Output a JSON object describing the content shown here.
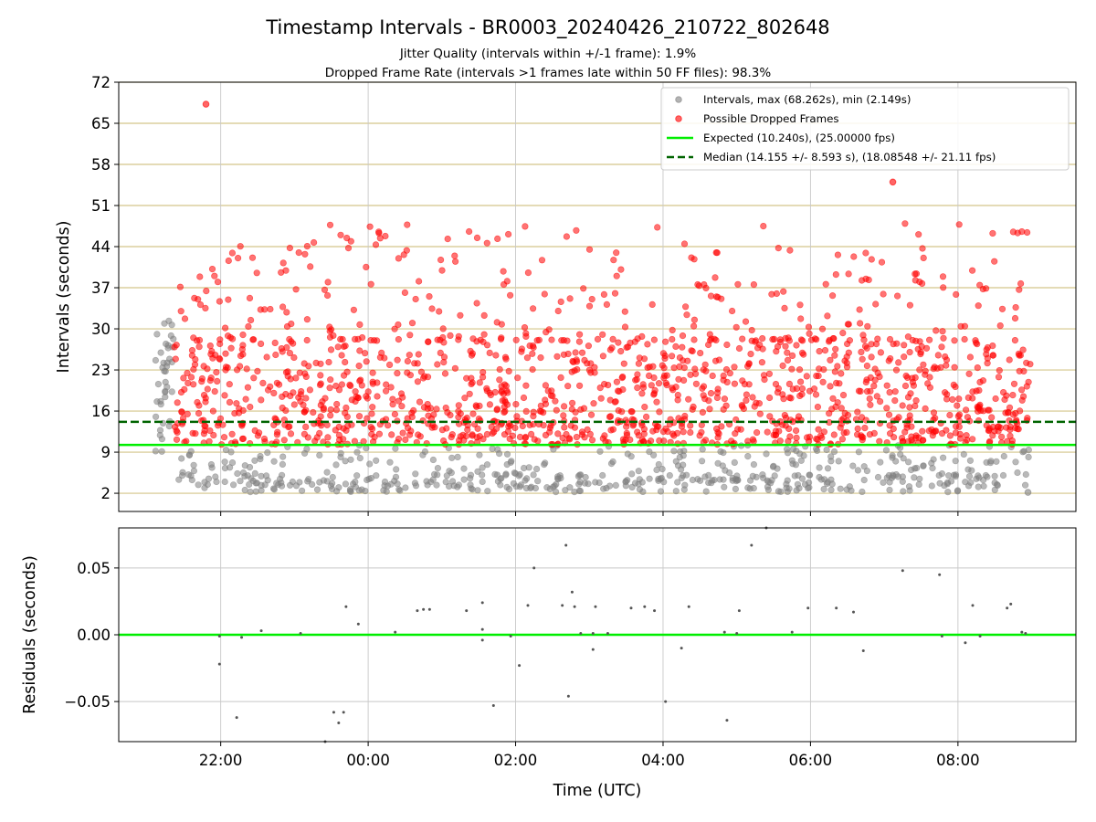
{
  "chart_data": [
    {
      "type": "scatter",
      "title": "Timestamp Intervals - BR0003_20240426_210722_802648",
      "subtitles": [
        "Jitter Quality (intervals within +/-1 frame): 1.9%",
        "Dropped Frame Rate (intervals >1 frames late within 50 FF files): 98.3%"
      ],
      "xlabel": "",
      "ylabel": "Intervals (seconds)",
      "xlim": [
        "2024-04-26 20:37",
        "2024-04-27 09:36"
      ],
      "ylim": [
        -1.1,
        72
      ],
      "yticks": [
        2,
        9,
        16,
        23,
        30,
        37,
        44,
        51,
        58,
        65,
        72
      ],
      "ytick_labels": [
        "2",
        "9",
        "16",
        "23",
        "30",
        "37",
        "44",
        "51",
        "58",
        "65",
        "72"
      ],
      "grid": "horizontal",
      "grid_color": "#d4c58a",
      "legend_position": "top-right",
      "reference_lines": [
        {
          "name": "Expected (10.240s), (25.00000 fps)",
          "y": 10.24,
          "style": "solid",
          "color": "#00ee00"
        },
        {
          "name": "Median (14.155 +/- 8.593 s), (18.08548 +/- 21.11 fps)",
          "y": 14.155,
          "style": "dashed",
          "color": "#006400"
        }
      ],
      "series": [
        {
          "name": "Intervals, max (68.262s), min (2.149s)",
          "color": "#808080",
          "marker": "circle"
        },
        {
          "name": "Possible Dropped Frames",
          "color": "#ff0000",
          "marker": "circle"
        }
      ],
      "notable_points": [
        {
          "x": "2024-04-26 21:48",
          "y": 68.262,
          "series": "Possible Dropped Frames"
        },
        {
          "x": "2024-04-27 07:07",
          "y": 55.0,
          "series": "Possible Dropped Frames"
        },
        {
          "x": "2024-04-27 08:57",
          "y": 2.149,
          "series": "Intervals, max (68.262s), min (2.149s)"
        }
      ],
      "x_start": "2024-04-26 21:07",
      "x_end": "2024-04-27 08:59"
    },
    {
      "type": "scatter",
      "xlabel": "Time (UTC)",
      "ylabel": "Residuals (seconds)",
      "xlim": [
        "2024-04-26 20:37",
        "2024-04-27 09:36"
      ],
      "ylim": [
        -0.08,
        0.08
      ],
      "yticks": [
        -0.05,
        0.0,
        0.05
      ],
      "ytick_labels": [
        "−0.05",
        "0.00",
        "0.05"
      ],
      "xticks": [
        "22:00",
        "00:00",
        "02:00",
        "04:00",
        "06:00",
        "08:00"
      ],
      "grid": "both",
      "reference_lines": [
        {
          "y": 0,
          "style": "solid",
          "color": "#00ee00"
        }
      ],
      "points": [
        [
          "2024-04-26 21:59",
          -0.001
        ],
        [
          "2024-04-26 21:59",
          -0.022
        ],
        [
          "2024-04-26 22:13",
          -0.062
        ],
        [
          "2024-04-26 22:17",
          -0.002
        ],
        [
          "2024-04-26 22:33",
          0.003
        ],
        [
          "2024-04-26 23:05",
          0.001
        ],
        [
          "2024-04-26 23:25",
          -0.08
        ],
        [
          "2024-04-26 23:32",
          -0.058
        ],
        [
          "2024-04-26 23:36",
          -0.066
        ],
        [
          "2024-04-26 23:40",
          -0.058
        ],
        [
          "2024-04-26 23:42",
          0.021
        ],
        [
          "2024-04-26 23:52",
          0.008
        ],
        [
          "2024-04-27 00:22",
          0.002
        ],
        [
          "2024-04-27 00:40",
          0.018
        ],
        [
          "2024-04-27 00:45",
          0.019
        ],
        [
          "2024-04-27 00:50",
          0.019
        ],
        [
          "2024-04-27 01:20",
          0.018
        ],
        [
          "2024-04-27 01:33",
          0.024
        ],
        [
          "2024-04-27 01:33",
          0.004
        ],
        [
          "2024-04-27 01:33",
          -0.004
        ],
        [
          "2024-04-27 01:42",
          -0.053
        ],
        [
          "2024-04-27 01:56",
          -0.001
        ],
        [
          "2024-04-27 02:03",
          -0.023
        ],
        [
          "2024-04-27 02:10",
          0.022
        ],
        [
          "2024-04-27 02:15",
          0.05
        ],
        [
          "2024-04-27 02:38",
          0.022
        ],
        [
          "2024-04-27 02:41",
          0.067
        ],
        [
          "2024-04-27 02:43",
          -0.046
        ],
        [
          "2024-04-27 02:46",
          0.032
        ],
        [
          "2024-04-27 02:48",
          0.021
        ],
        [
          "2024-04-27 02:53",
          0.001
        ],
        [
          "2024-04-27 03:03",
          0.001
        ],
        [
          "2024-04-27 03:03",
          -0.011
        ],
        [
          "2024-04-27 03:05",
          0.021
        ],
        [
          "2024-04-27 03:15",
          0.001
        ],
        [
          "2024-04-27 03:34",
          0.02
        ],
        [
          "2024-04-27 03:45",
          0.021
        ],
        [
          "2024-04-27 03:53",
          0.018
        ],
        [
          "2024-04-27 04:02",
          -0.05
        ],
        [
          "2024-04-27 04:15",
          -0.01
        ],
        [
          "2024-04-27 04:21",
          0.021
        ],
        [
          "2024-04-27 04:50",
          0.002
        ],
        [
          "2024-04-27 04:52",
          -0.064
        ],
        [
          "2024-04-27 05:00",
          0.001
        ],
        [
          "2024-04-27 05:02",
          0.018
        ],
        [
          "2024-04-27 05:12",
          0.067
        ],
        [
          "2024-04-27 05:24",
          0.08
        ],
        [
          "2024-04-27 05:45",
          0.002
        ],
        [
          "2024-04-27 05:58",
          0.02
        ],
        [
          "2024-04-27 06:21",
          0.02
        ],
        [
          "2024-04-27 06:35",
          0.017
        ],
        [
          "2024-04-27 06:43",
          -0.012
        ],
        [
          "2024-04-27 07:15",
          0.048
        ],
        [
          "2024-04-27 07:45",
          0.045
        ],
        [
          "2024-04-27 07:47",
          -0.001
        ],
        [
          "2024-04-27 08:06",
          -0.006
        ],
        [
          "2024-04-27 08:12",
          0.022
        ],
        [
          "2024-04-27 08:18",
          -0.001
        ],
        [
          "2024-04-27 08:40",
          0.02
        ],
        [
          "2024-04-27 08:43",
          0.023
        ],
        [
          "2024-04-27 08:52",
          0.002
        ],
        [
          "2024-04-27 08:55",
          0.001
        ]
      ]
    }
  ]
}
